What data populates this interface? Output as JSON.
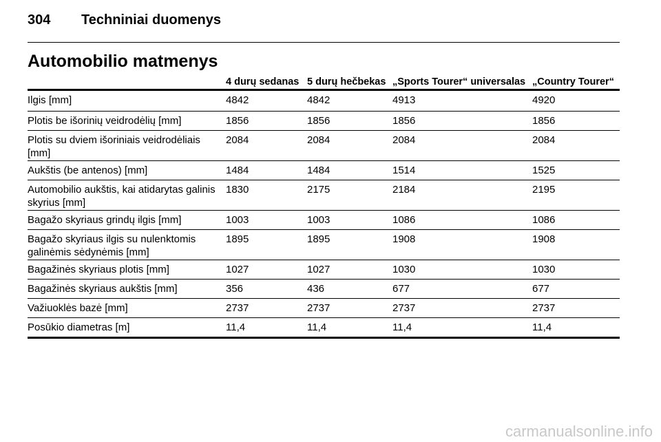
{
  "header": {
    "page_number": "304",
    "section": "Techniniai duomenys"
  },
  "title": "Automobilio matmenys",
  "table": {
    "columns": [
      "4 durų sedanas",
      "5 durų hečbekas",
      "„Sports Tourer“ universalas",
      "„Country Tourer“"
    ],
    "rows": [
      [
        "Ilgis [mm]",
        "4842",
        "4842",
        "4913",
        "4920"
      ],
      [
        "Plotis be išorinių veidrodėlių [mm]",
        "1856",
        "1856",
        "1856",
        "1856"
      ],
      [
        "Plotis su dviem išoriniais veidrodėliais [mm]",
        "2084",
        "2084",
        "2084",
        "2084"
      ],
      [
        "Aukštis (be antenos) [mm]",
        "1484",
        "1484",
        "1514",
        "1525"
      ],
      [
        "Automobilio aukštis, kai atidarytas galinis skyrius [mm]",
        "1830",
        "2175",
        "2184",
        "2195"
      ],
      [
        "Bagažo skyriaus grindų ilgis [mm]",
        "1003",
        "1003",
        "1086",
        "1086"
      ],
      [
        "Bagažo skyriaus ilgis su nulenktomis galinėmis sėdynėmis [mm]",
        "1895",
        "1895",
        "1908",
        "1908"
      ],
      [
        "Bagažinės skyriaus plotis [mm]",
        "1027",
        "1027",
        "1030",
        "1030"
      ],
      [
        "Bagažinės skyriaus aukštis [mm]",
        "356",
        "436",
        "677",
        "677"
      ],
      [
        "Važiuoklės bazė [mm]",
        "2737",
        "2737",
        "2737",
        "2737"
      ],
      [
        "Posūkio diametras [m]",
        "11,4",
        "11,4",
        "11,4",
        "11,4"
      ]
    ]
  },
  "watermark": "carmanualsonline.info"
}
